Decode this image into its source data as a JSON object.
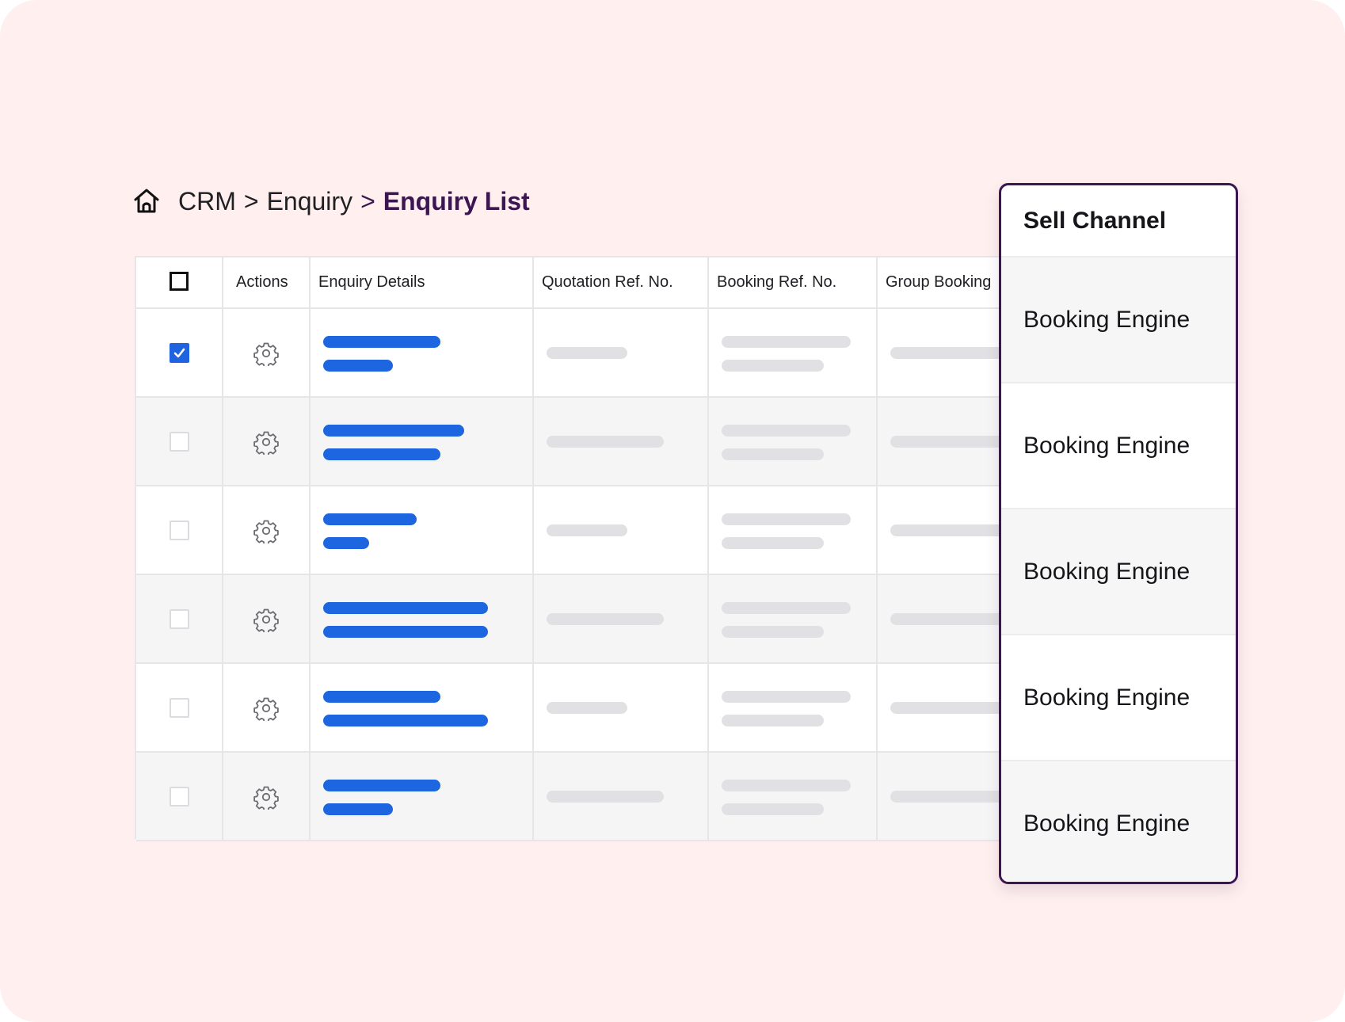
{
  "breadcrumb": {
    "home_icon": "home-icon",
    "items": [
      "CRM",
      "Enquiry",
      "Enquiry List"
    ],
    "separator": ">"
  },
  "table": {
    "columns": [
      "",
      "Actions",
      "Enquiry Details",
      "Quotation Ref. No.",
      "Booking Ref. No.",
      "Group Booking"
    ],
    "rows": [
      {
        "checked": true
      },
      {
        "checked": false
      },
      {
        "checked": false
      },
      {
        "checked": false
      },
      {
        "checked": false
      },
      {
        "checked": false
      }
    ]
  },
  "sell_channel": {
    "title": "Sell Channel",
    "values": [
      "Booking Engine",
      "Booking Engine",
      "Booking Engine",
      "Booking Engine",
      "Booking Engine"
    ]
  },
  "colors": {
    "background": "#fff0ef",
    "accent": "#3b1651",
    "checkbox_blue": "#1f63e0",
    "skeleton_blue": "#1d66e0",
    "skeleton_grey": "#e1e1e4"
  }
}
